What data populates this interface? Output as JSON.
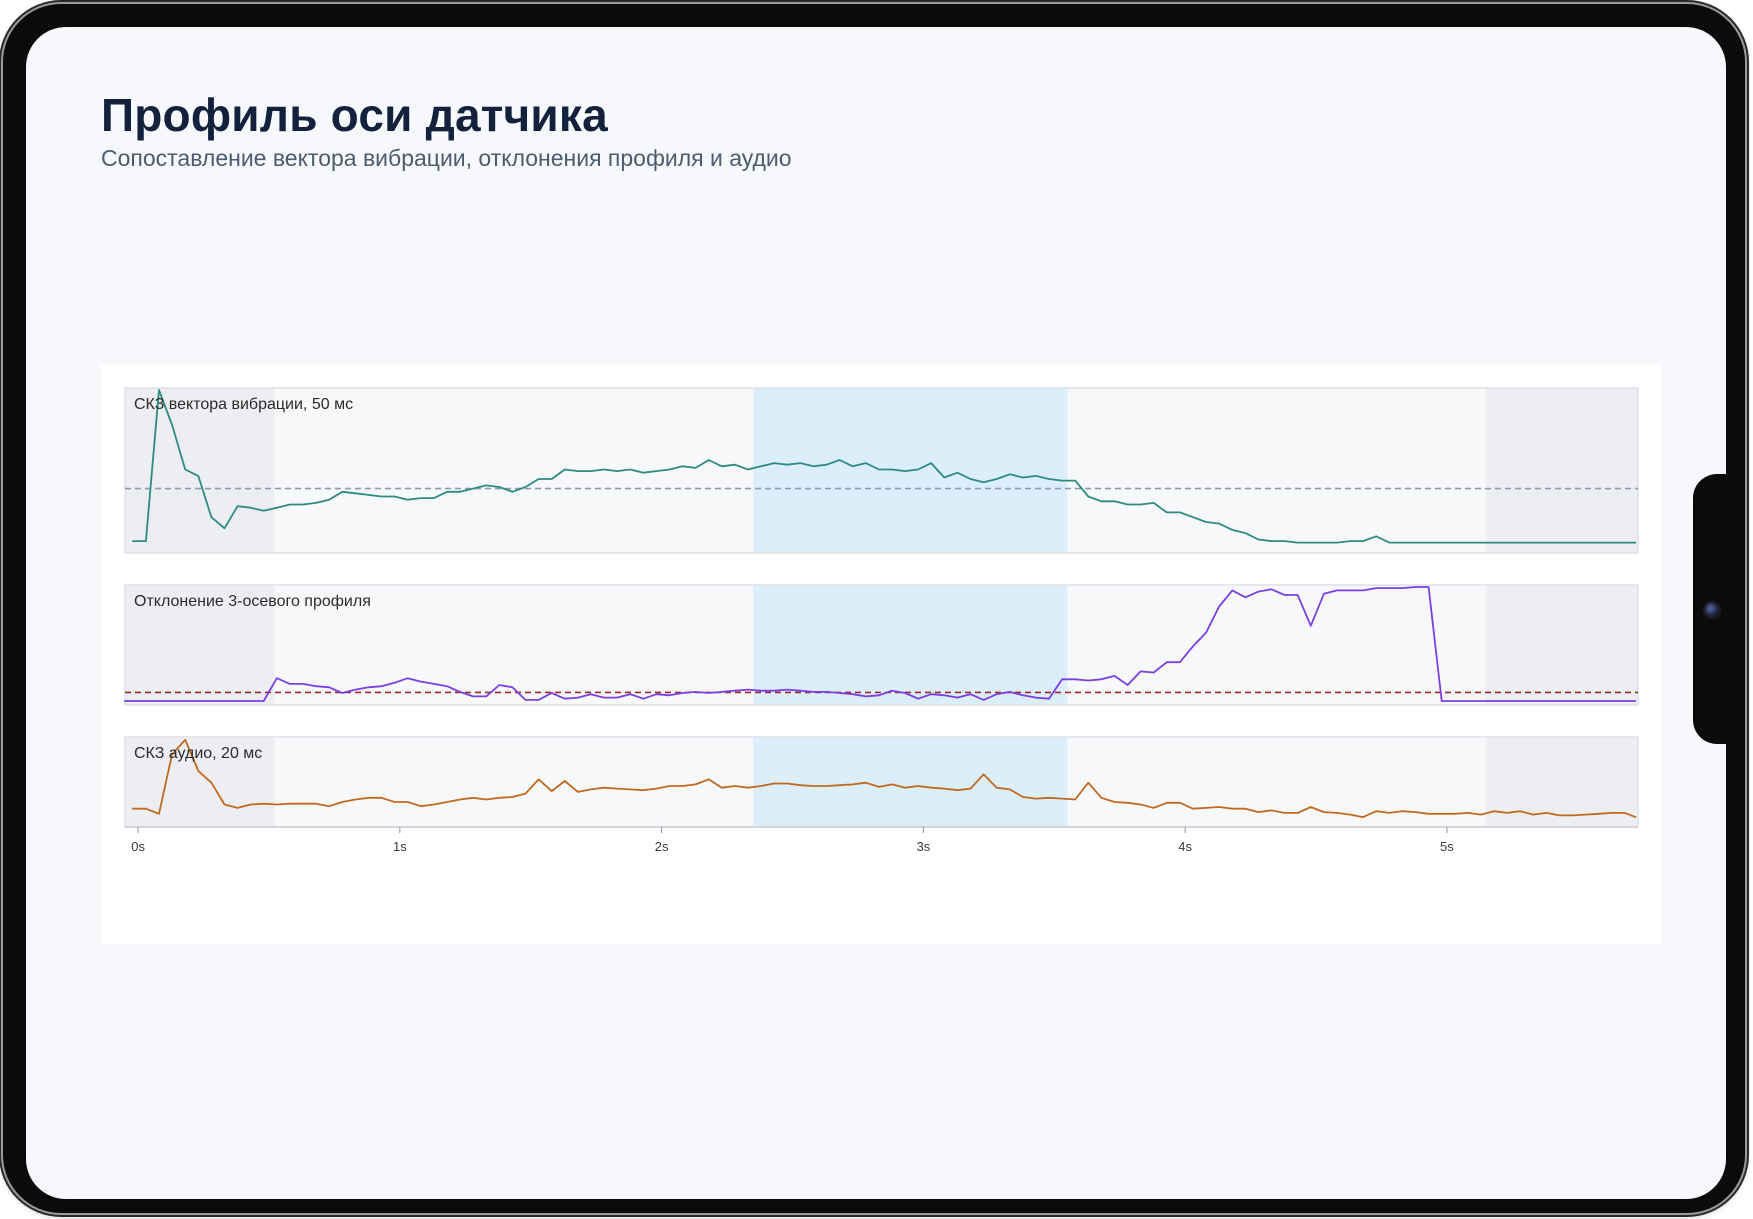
{
  "page": {
    "title": "Профиль оси датчика",
    "subtitle": "Сопоставление вектора вибрации, отклонения профиля и аудио"
  },
  "colors": {
    "vibration": "#2e8b82",
    "profile": "#7b3fe4",
    "audio": "#c06a1f",
    "vibration_reference": "#8c9ab8",
    "profile_reference": "#9c2a2a",
    "highlight_band": "#dbeefa",
    "shaded_band": "#eceef2",
    "panel_background": "#f7f8fa"
  },
  "chart_data": {
    "type": "line",
    "layout": "stacked panels with shared time axis",
    "x_unit": "s",
    "xlim": [
      -0.05,
      5.73
    ],
    "x_ticks": [
      {
        "value": 0,
        "label": "0s"
      },
      {
        "value": 1,
        "label": "1s"
      },
      {
        "value": 2,
        "label": "2s"
      },
      {
        "value": 3,
        "label": "3s"
      },
      {
        "value": 4,
        "label": "4s"
      },
      {
        "value": 5,
        "label": "5s"
      }
    ],
    "bands": [
      {
        "type": "shaded",
        "x0": -0.05,
        "x1": 0.52
      },
      {
        "type": "highlight",
        "x0": 2.35,
        "x1": 3.55
      },
      {
        "type": "shaded",
        "x0": 5.15,
        "x1": 5.73
      }
    ],
    "panels": [
      {
        "title": "СКЗ вектора вибрации, 50 мс",
        "series_key": "vibration",
        "ylim": [
          0,
          1
        ],
        "reference": 0.38,
        "reference_color_key": "vibration_reference",
        "x": [
          -0.02,
          0.03,
          0.08,
          0.13,
          0.18,
          0.23,
          0.28,
          0.33,
          0.38,
          0.43,
          0.48,
          0.53,
          0.58,
          0.63,
          0.68,
          0.73,
          0.78,
          0.83,
          0.88,
          0.93,
          0.98,
          1.03,
          1.08,
          1.13,
          1.18,
          1.23,
          1.28,
          1.33,
          1.38,
          1.43,
          1.48,
          1.53,
          1.58,
          1.63,
          1.68,
          1.73,
          1.78,
          1.83,
          1.88,
          1.93,
          1.98,
          2.03,
          2.08,
          2.13,
          2.18,
          2.23,
          2.28,
          2.33,
          2.38,
          2.43,
          2.48,
          2.53,
          2.58,
          2.63,
          2.68,
          2.73,
          2.78,
          2.83,
          2.88,
          2.93,
          2.98,
          3.03,
          3.08,
          3.13,
          3.18,
          3.23,
          3.28,
          3.33,
          3.38,
          3.43,
          3.48,
          3.53,
          3.58,
          3.63,
          3.68,
          3.73,
          3.78,
          3.83,
          3.88,
          3.93,
          3.98,
          4.03,
          4.08,
          4.13,
          4.18,
          4.23,
          4.28,
          4.33,
          4.38,
          4.43,
          4.48,
          4.53,
          4.58,
          4.63,
          4.68,
          4.73,
          4.78,
          4.83,
          4.88,
          4.93,
          4.98,
          5.03,
          5.08,
          5.13,
          5.18,
          5.23,
          5.28,
          5.33,
          5.38,
          5.43,
          5.48,
          5.53,
          5.58,
          5.63,
          5.68,
          5.72
        ],
        "y": [
          0.05,
          0.05,
          1.0,
          0.78,
          0.5,
          0.46,
          0.2,
          0.13,
          0.27,
          0.26,
          0.24,
          0.26,
          0.28,
          0.28,
          0.29,
          0.31,
          0.36,
          0.35,
          0.34,
          0.33,
          0.33,
          0.31,
          0.32,
          0.32,
          0.36,
          0.36,
          0.38,
          0.4,
          0.39,
          0.36,
          0.39,
          0.44,
          0.44,
          0.5,
          0.49,
          0.49,
          0.5,
          0.49,
          0.5,
          0.48,
          0.49,
          0.5,
          0.52,
          0.51,
          0.56,
          0.52,
          0.53,
          0.5,
          0.52,
          0.54,
          0.53,
          0.54,
          0.52,
          0.53,
          0.56,
          0.52,
          0.54,
          0.5,
          0.5,
          0.49,
          0.5,
          0.54,
          0.45,
          0.48,
          0.44,
          0.42,
          0.44,
          0.47,
          0.45,
          0.46,
          0.44,
          0.43,
          0.43,
          0.33,
          0.3,
          0.3,
          0.28,
          0.28,
          0.29,
          0.23,
          0.23,
          0.2,
          0.17,
          0.16,
          0.12,
          0.1,
          0.06,
          0.05,
          0.05,
          0.04,
          0.04,
          0.04,
          0.04,
          0.05,
          0.05,
          0.08,
          0.04,
          0.04,
          0.04,
          0.04,
          0.04,
          0.04,
          0.04,
          0.04,
          0.04,
          0.04,
          0.04,
          0.04,
          0.04,
          0.04,
          0.04,
          0.04,
          0.04,
          0.04,
          0.04,
          0.04
        ]
      },
      {
        "title": "Отклонение 3-осевого профиля",
        "series_key": "profile",
        "ylim": [
          0,
          1
        ],
        "reference": 0.075,
        "reference_color_key": "profile_reference",
        "x": [
          -0.05,
          0.48,
          0.53,
          0.58,
          0.63,
          0.68,
          0.73,
          0.78,
          0.83,
          0.88,
          0.93,
          0.98,
          1.03,
          1.08,
          1.13,
          1.18,
          1.23,
          1.28,
          1.33,
          1.38,
          1.43,
          1.48,
          1.53,
          1.58,
          1.63,
          1.68,
          1.73,
          1.78,
          1.83,
          1.88,
          1.93,
          1.98,
          2.03,
          2.08,
          2.13,
          2.18,
          2.23,
          2.28,
          2.33,
          2.38,
          2.43,
          2.48,
          2.53,
          2.58,
          2.63,
          2.68,
          2.73,
          2.78,
          2.83,
          2.88,
          2.93,
          2.98,
          3.03,
          3.08,
          3.13,
          3.18,
          3.23,
          3.28,
          3.33,
          3.38,
          3.43,
          3.48,
          3.53,
          3.58,
          3.63,
          3.68,
          3.73,
          3.78,
          3.83,
          3.88,
          3.93,
          3.98,
          4.03,
          4.08,
          4.13,
          4.18,
          4.23,
          4.28,
          4.33,
          4.38,
          4.43,
          4.48,
          4.53,
          4.58,
          4.63,
          4.68,
          4.73,
          4.78,
          4.83,
          4.88,
          4.93,
          4.98,
          5.03,
          5.08,
          5.13,
          5.18,
          5.23,
          5.72
        ],
        "y": [
          0,
          0,
          0.2,
          0.15,
          0.15,
          0.13,
          0.12,
          0.07,
          0.1,
          0.12,
          0.13,
          0.16,
          0.2,
          0.17,
          0.15,
          0.13,
          0.08,
          0.04,
          0.04,
          0.14,
          0.12,
          0.01,
          0.01,
          0.07,
          0.02,
          0.03,
          0.06,
          0.03,
          0.03,
          0.06,
          0.02,
          0.06,
          0.05,
          0.07,
          0.08,
          0.07,
          0.08,
          0.09,
          0.1,
          0.09,
          0.09,
          0.1,
          0.09,
          0.08,
          0.08,
          0.07,
          0.06,
          0.04,
          0.05,
          0.09,
          0.07,
          0.02,
          0.06,
          0.05,
          0.03,
          0.06,
          0.01,
          0.06,
          0.08,
          0.05,
          0.03,
          0.02,
          0.19,
          0.19,
          0.18,
          0.19,
          0.22,
          0.14,
          0.26,
          0.25,
          0.34,
          0.34,
          0.48,
          0.6,
          0.83,
          0.97,
          0.91,
          0.96,
          0.98,
          0.93,
          0.93,
          0.66,
          0.94,
          0.97,
          0.97,
          0.97,
          0.99,
          0.99,
          0.99,
          1.0,
          1.0,
          0.0,
          0.0,
          0.0,
          0.0,
          0.0,
          0.0,
          0.0
        ],
        "x_note": "profile series x values"
      },
      {
        "title": "СКЗ аудио, 20 мс",
        "series_key": "audio",
        "ylim": [
          0,
          1
        ],
        "x": [
          -0.02,
          0.03,
          0.08,
          0.13,
          0.18,
          0.23,
          0.28,
          0.33,
          0.38,
          0.43,
          0.48,
          0.53,
          0.58,
          0.63,
          0.68,
          0.73,
          0.78,
          0.83,
          0.88,
          0.93,
          0.98,
          1.03,
          1.08,
          1.13,
          1.18,
          1.23,
          1.28,
          1.33,
          1.38,
          1.43,
          1.48,
          1.53,
          1.58,
          1.63,
          1.68,
          1.73,
          1.78,
          1.83,
          1.88,
          1.93,
          1.98,
          2.03,
          2.08,
          2.13,
          2.18,
          2.23,
          2.28,
          2.33,
          2.38,
          2.43,
          2.48,
          2.53,
          2.58,
          2.63,
          2.68,
          2.73,
          2.78,
          2.83,
          2.88,
          2.93,
          2.98,
          3.03,
          3.08,
          3.13,
          3.18,
          3.23,
          3.28,
          3.33,
          3.38,
          3.43,
          3.48,
          3.53,
          3.58,
          3.63,
          3.68,
          3.73,
          3.78,
          3.83,
          3.88,
          3.93,
          3.98,
          4.03,
          4.08,
          4.13,
          4.18,
          4.23,
          4.28,
          4.33,
          4.38,
          4.43,
          4.48,
          4.53,
          4.58,
          4.63,
          4.68,
          4.73,
          4.78,
          4.83,
          4.88,
          4.93,
          4.98,
          5.03,
          5.08,
          5.13,
          5.18,
          5.23,
          5.28,
          5.33,
          5.38,
          5.43,
          5.48,
          5.53,
          5.58,
          5.63,
          5.68,
          5.72
        ],
        "y": [
          0.17,
          0.17,
          0.11,
          0.82,
          0.99,
          0.62,
          0.48,
          0.22,
          0.18,
          0.22,
          0.23,
          0.22,
          0.23,
          0.23,
          0.23,
          0.2,
          0.25,
          0.28,
          0.3,
          0.3,
          0.25,
          0.25,
          0.2,
          0.22,
          0.25,
          0.28,
          0.3,
          0.28,
          0.3,
          0.31,
          0.35,
          0.52,
          0.38,
          0.5,
          0.37,
          0.4,
          0.42,
          0.41,
          0.4,
          0.39,
          0.41,
          0.44,
          0.44,
          0.46,
          0.52,
          0.42,
          0.44,
          0.42,
          0.44,
          0.47,
          0.47,
          0.45,
          0.44,
          0.44,
          0.45,
          0.46,
          0.48,
          0.43,
          0.46,
          0.42,
          0.44,
          0.42,
          0.41,
          0.39,
          0.41,
          0.58,
          0.42,
          0.4,
          0.31,
          0.29,
          0.3,
          0.29,
          0.28,
          0.48,
          0.3,
          0.25,
          0.24,
          0.22,
          0.18,
          0.24,
          0.24,
          0.17,
          0.18,
          0.19,
          0.17,
          0.17,
          0.13,
          0.15,
          0.12,
          0.12,
          0.19,
          0.13,
          0.12,
          0.1,
          0.07,
          0.14,
          0.12,
          0.14,
          0.13,
          0.11,
          0.11,
          0.11,
          0.12,
          0.1,
          0.14,
          0.12,
          0.14,
          0.1,
          0.12,
          0.09,
          0.09,
          0.1,
          0.11,
          0.12,
          0.12,
          0.07
        ]
      }
    ]
  }
}
